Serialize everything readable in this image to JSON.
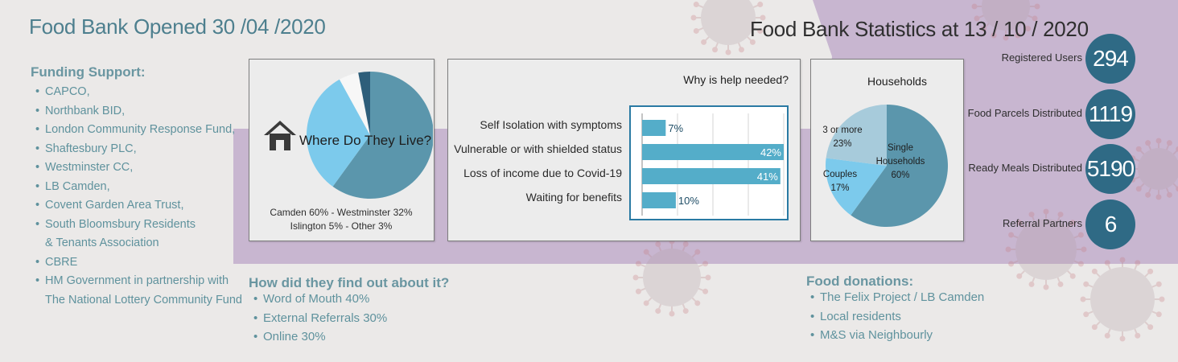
{
  "header": {
    "opened_title": "Food Bank Opened 30 /04 /2020",
    "stats_title": "Food Bank Statistics at 13 / 10 / 2020"
  },
  "funding": {
    "heading": "Funding Support:",
    "items": [
      [
        "CAPCO,"
      ],
      [
        "Northbank BID,"
      ],
      [
        "London Community Response Fund,"
      ],
      [
        "Shaftesbury PLC,"
      ],
      [
        "Westminster CC,"
      ],
      [
        "LB Camden,"
      ],
      [
        "Covent Garden Area Trust,"
      ],
      [
        "South Bloomsbury Residents",
        "& Tenants Association"
      ],
      [
        "CBRE"
      ],
      [
        "HM Government in partnership with",
        "The National Lottery Community Fund"
      ]
    ]
  },
  "find_out": {
    "heading": "How did they find out about it?",
    "items": [
      "Word of Mouth 40%",
      "External Referrals 30%",
      "Online 30%"
    ]
  },
  "donations": {
    "heading": "Food donations:",
    "items": [
      "The Felix Project / LB Camden",
      "Local residents",
      "M&S via Neighbourly"
    ]
  },
  "stats": [
    {
      "label": "Registered Users",
      "value": "294"
    },
    {
      "label": "Food Parcels Distributed",
      "value": "1119"
    },
    {
      "label": "Ready Meals Distributed",
      "value": "5190"
    },
    {
      "label": "Referral Partners",
      "value": "6"
    }
  ],
  "colors": {
    "teal": "#5b96ac",
    "light_blue": "#7ccaec",
    "pale_blue": "#a7cbdb",
    "navy": "#2e5e7a",
    "white_slice": "#f7f7f7",
    "bar": "#54adc9",
    "circle": "#2f6a85",
    "band": "#c8b6d0"
  },
  "icons": {
    "house": "house-icon",
    "virus": "virus-icon"
  },
  "chart_data": [
    {
      "type": "pie",
      "title": "Where Do They Live?",
      "caption_line1": "Camden 60% - Westminster 32%",
      "caption_line2": "Islington 5% - Other 3%",
      "categories": [
        "Camden",
        "Westminster",
        "Islington",
        "Other"
      ],
      "values": [
        60,
        32,
        5,
        3
      ],
      "colors": [
        "#5b96ac",
        "#7ccaec",
        "#f7f7f7",
        "#2e5e7a"
      ]
    },
    {
      "type": "bar",
      "orientation": "horizontal",
      "title": "Why is help needed?",
      "categories": [
        "Self Isolation with symptoms",
        "Vulnerable or with shielded status",
        "Loss of income due to Covid-19",
        "Waiting for benefits"
      ],
      "values": [
        7,
        42,
        41,
        10
      ],
      "value_labels": [
        "7%",
        "42%",
        "41%",
        "10%"
      ],
      "xlim": [
        0,
        42
      ],
      "grid": true
    },
    {
      "type": "pie",
      "title": "Households",
      "categories": [
        "Single Households",
        "Couples",
        "3 or more"
      ],
      "values": [
        60,
        17,
        23
      ],
      "slice_labels": [
        [
          "Single",
          "Households",
          "60%"
        ],
        [
          "Couples",
          "17%"
        ],
        [
          "3 or more",
          "23%"
        ]
      ],
      "colors": [
        "#5b96ac",
        "#7ccaec",
        "#a7cbdb"
      ]
    }
  ]
}
